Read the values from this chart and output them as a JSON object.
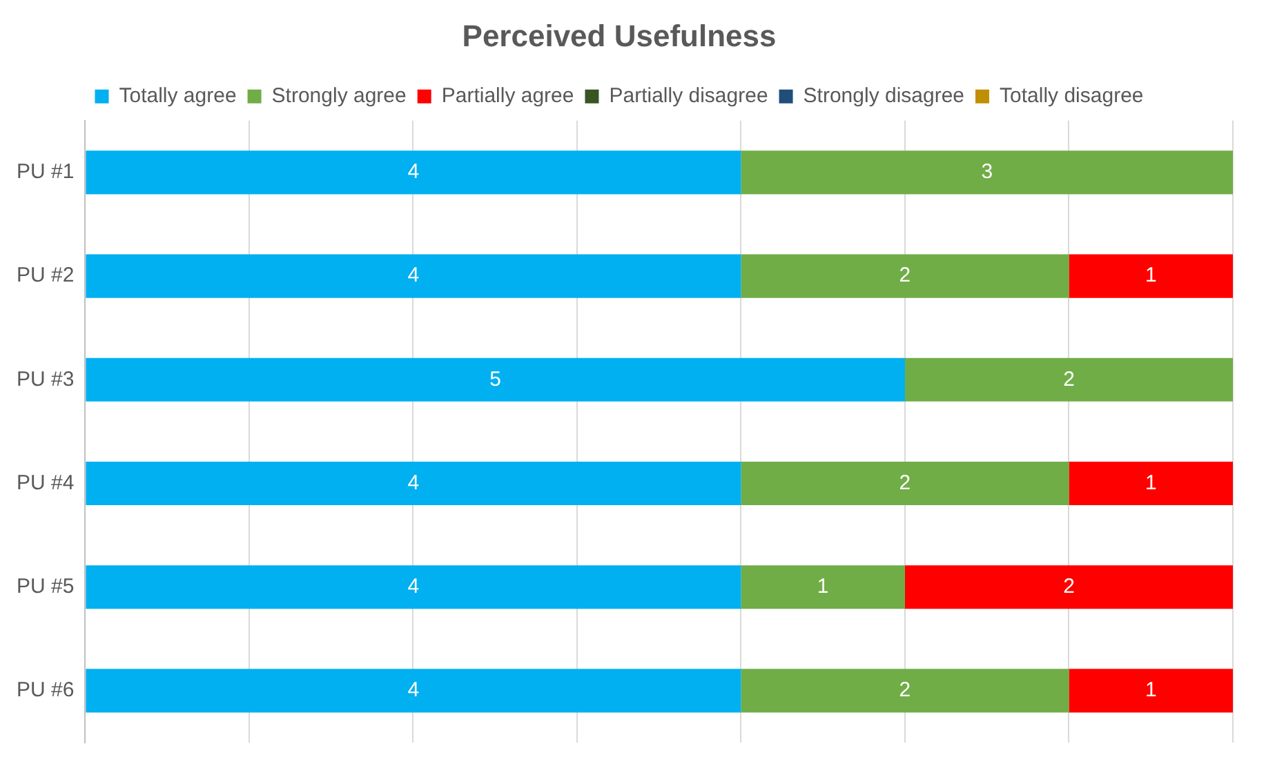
{
  "chart_data": {
    "type": "bar",
    "orientation": "horizontal",
    "stacked": true,
    "title": "Perceived Usefulness",
    "categories": [
      "PU #1",
      "PU #2",
      "PU #3",
      "PU #4",
      "PU #5",
      "PU #6"
    ],
    "series": [
      {
        "name": "Totally agree",
        "color": "#00b0f0",
        "values": [
          4,
          4,
          5,
          4,
          4,
          4
        ]
      },
      {
        "name": "Strongly agree",
        "color": "#70ad47",
        "values": [
          3,
          2,
          2,
          2,
          1,
          2
        ]
      },
      {
        "name": "Partially agree",
        "color": "#ff0000",
        "values": [
          null,
          1,
          null,
          1,
          2,
          1
        ]
      },
      {
        "name": "Partially disagree",
        "color": "#375623",
        "values": [
          null,
          null,
          null,
          null,
          null,
          null
        ]
      },
      {
        "name": "Strongly disagree",
        "color": "#1f4e79",
        "values": [
          null,
          null,
          null,
          null,
          null,
          null
        ]
      },
      {
        "name": "Totally disagree",
        "color": "#bf8f00",
        "values": [
          null,
          null,
          null,
          null,
          null,
          null
        ]
      }
    ],
    "xlim": [
      0,
      7
    ],
    "xticks": [
      {
        "value": 0,
        "label": null
      },
      {
        "value": 1,
        "label": null
      },
      {
        "value": 2,
        "label": null
      },
      {
        "value": 3,
        "label": null
      },
      {
        "value": 4,
        "label": null
      },
      {
        "value": 5,
        "label": null
      },
      {
        "value": 6,
        "label": null
      },
      {
        "value": 7,
        "label": null
      }
    ],
    "tick_labels": "y",
    "grid": "x",
    "legend": "top",
    "data_labels": true
  }
}
